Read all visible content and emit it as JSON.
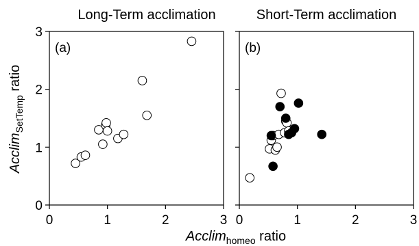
{
  "chart_data": [
    {
      "type": "scatter",
      "title": "Long-Term acclimation",
      "panel_label": "(a)",
      "xlim": [
        0,
        3
      ],
      "ylim": [
        0,
        3
      ],
      "xticks": [
        "0",
        "1",
        "2",
        "3"
      ],
      "yticks": [
        "0",
        "1",
        "2",
        "3"
      ],
      "series": [
        {
          "marker": "open-circle",
          "points": [
            [
              0.45,
              0.72
            ],
            [
              0.55,
              0.83
            ],
            [
              0.62,
              0.86
            ],
            [
              0.85,
              1.3
            ],
            [
              0.92,
              1.05
            ],
            [
              0.97,
              1.38
            ],
            [
              0.98,
              1.42
            ],
            [
              1.0,
              1.28
            ],
            [
              1.18,
              1.15
            ],
            [
              1.28,
              1.22
            ],
            [
              1.6,
              2.15
            ],
            [
              1.68,
              1.55
            ],
            [
              2.45,
              2.83
            ]
          ]
        }
      ]
    },
    {
      "type": "scatter",
      "title": "Short-Term acclimation",
      "panel_label": "(b)",
      "xlim": [
        0,
        3
      ],
      "ylim": [
        0,
        3
      ],
      "xticks": [
        "0",
        "1",
        "2",
        "3"
      ],
      "yticks": [
        "0",
        "1",
        "2",
        "3"
      ],
      "series": [
        {
          "marker": "open-circle",
          "points": [
            [
              0.18,
              0.47
            ],
            [
              0.52,
              0.97
            ],
            [
              0.55,
              1.12
            ],
            [
              0.58,
              1.2
            ],
            [
              0.62,
              0.95
            ],
            [
              0.65,
              1.0
            ],
            [
              0.68,
              1.22
            ],
            [
              0.72,
              1.93
            ],
            [
              0.78,
              1.25
            ],
            [
              0.8,
              1.45
            ],
            [
              0.82,
              1.42
            ],
            [
              0.85,
              1.28
            ]
          ]
        },
        {
          "marker": "filled-circle",
          "points": [
            [
              0.55,
              1.2
            ],
            [
              0.58,
              0.67
            ],
            [
              0.7,
              1.7
            ],
            [
              0.8,
              1.5
            ],
            [
              0.85,
              1.22
            ],
            [
              0.9,
              1.25
            ],
            [
              0.95,
              1.32
            ],
            [
              1.02,
              1.76
            ],
            [
              1.42,
              1.22
            ]
          ]
        }
      ]
    }
  ],
  "axes": {
    "y_label_main": "Acclim",
    "y_label_sub": "SetTemp",
    "y_label_tail": " ratio",
    "x_label_main": "Acclim",
    "x_label_sub": "homeo",
    "x_label_tail": " ratio"
  },
  "colors": {
    "axis": "#000000",
    "open_fill": "#ffffff",
    "filled_fill": "#000000"
  }
}
